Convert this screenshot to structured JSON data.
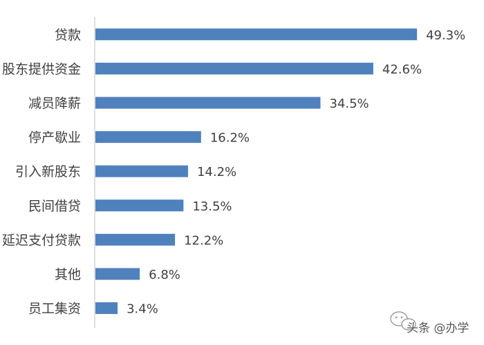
{
  "chart_data": {
    "type": "bar",
    "orientation": "horizontal",
    "categories": [
      "贷款",
      "股东提供资金",
      "减员降薪",
      "停产歇业",
      "引入新股东",
      "民间借贷",
      "延迟支付贷款",
      "其他",
      "员工集资"
    ],
    "values": [
      49.3,
      42.6,
      34.5,
      16.2,
      14.2,
      13.5,
      12.2,
      6.8,
      3.4
    ],
    "value_labels": [
      "49.3%",
      "42.6%",
      "34.5%",
      "16.2%",
      "14.2%",
      "13.5%",
      "12.2%",
      "6.8%",
      "3.4%"
    ],
    "title": "",
    "xlabel": "",
    "ylabel": "",
    "xlim": [
      0,
      53
    ],
    "grid": false,
    "legend": "none"
  },
  "colors": {
    "bar": "#4f81bd",
    "axis": "#bfbfbf",
    "text": "#404040"
  },
  "watermark": {
    "text": "头条 @办学",
    "icon": "wechat-bubble-icon"
  }
}
